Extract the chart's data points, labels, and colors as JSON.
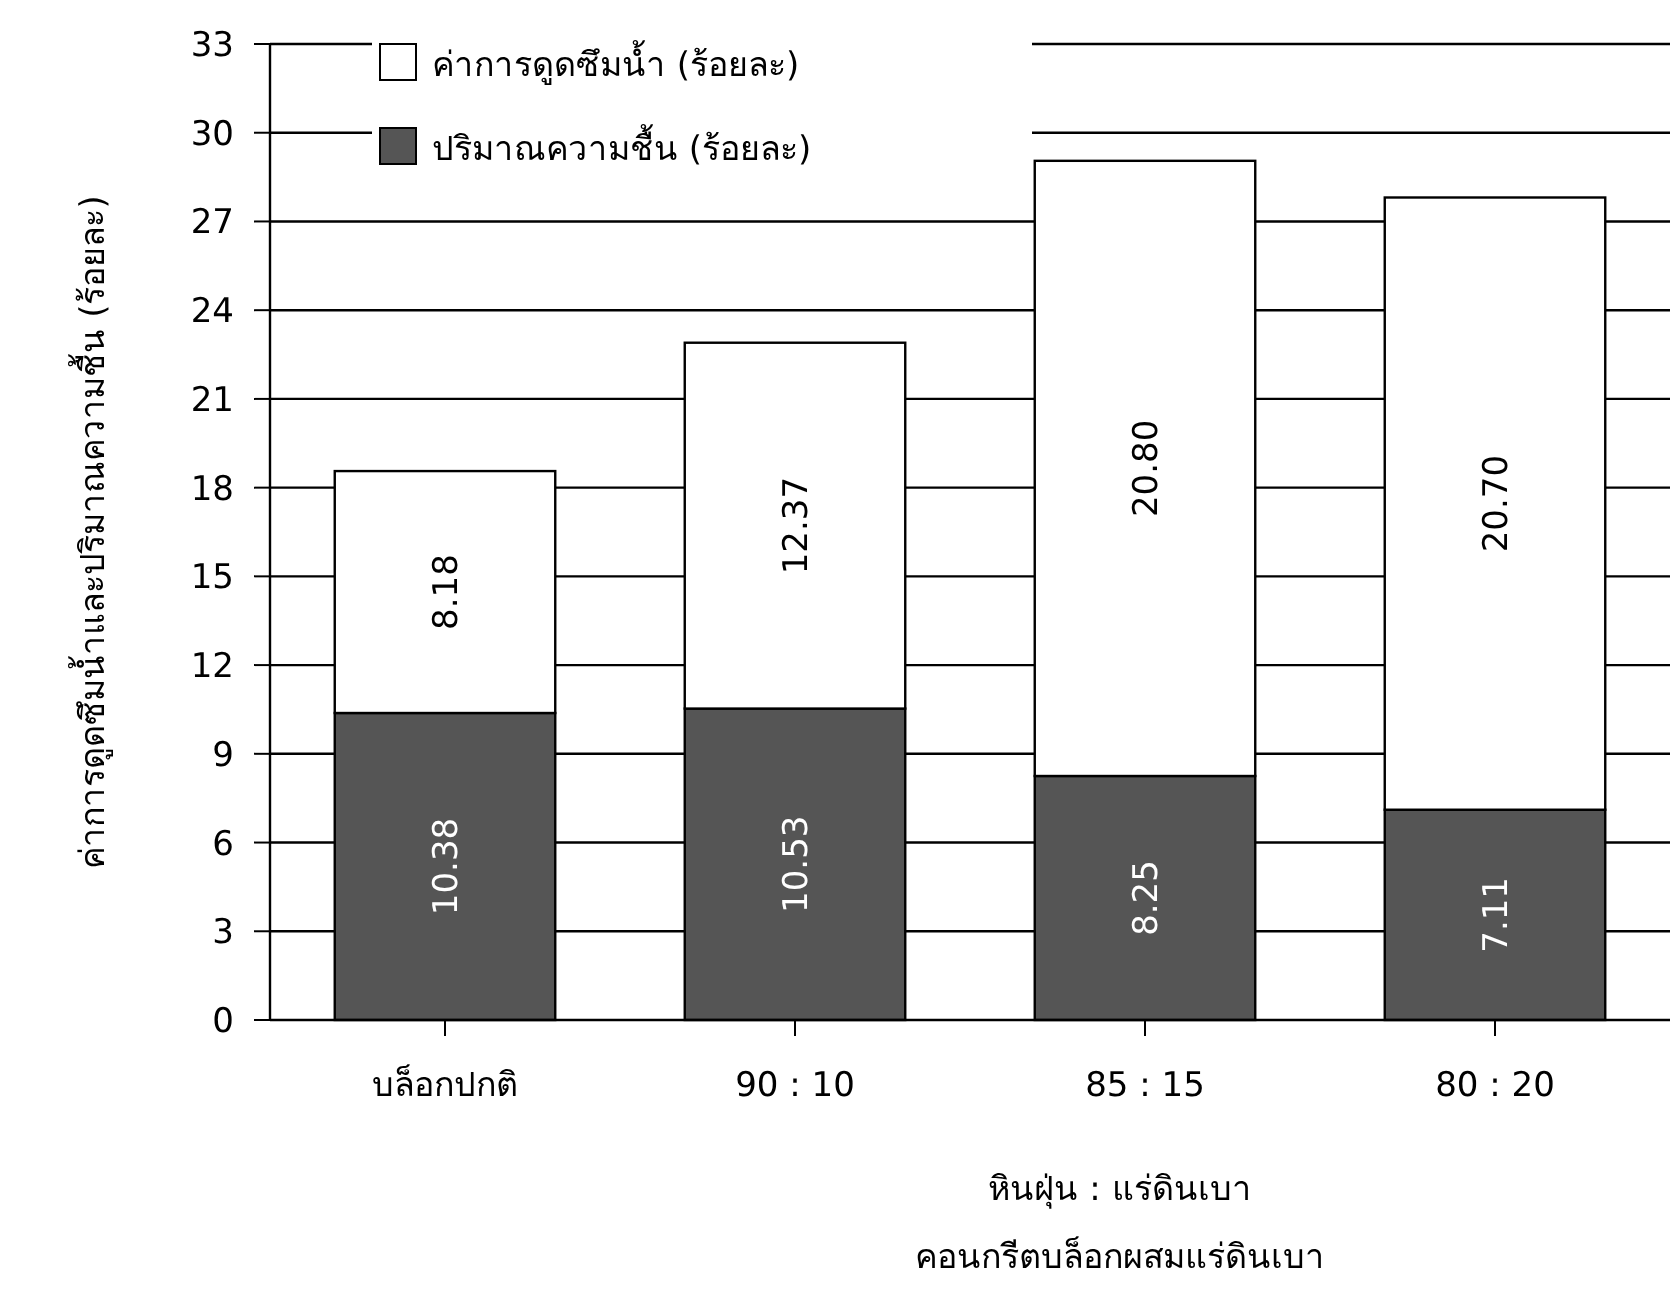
{
  "chart_data": {
    "type": "bar",
    "stacked": true,
    "categories": [
      "บล็อกปกติ",
      "90 : 10",
      "85 : 15",
      "80 : 20"
    ],
    "series": [
      {
        "name": "ปริมาณความชื้น (ร้อยละ)",
        "color": "#555555",
        "values": [
          10.38,
          10.53,
          8.25,
          7.11
        ],
        "value_labels": [
          "10.38",
          "10.53",
          "8.25",
          "7.11"
        ]
      },
      {
        "name": "ค่าการดูดซึมน้ำ (ร้อยละ)",
        "color": "#ffffff",
        "values": [
          8.18,
          12.37,
          20.8,
          20.7
        ],
        "value_labels": [
          "8.18",
          "12.37",
          "20.80",
          "20.70"
        ]
      }
    ],
    "ylabel": "ค่าการดูดซึมน้ำและปริมาณความชื้น (ร้อยละ)",
    "xlabel": "หินฝุ่น : แร่ดินเบา",
    "annotations": [
      "คอนกรีตบล็อกผสมแร่ดินเบา"
    ],
    "ylim": [
      0,
      33
    ],
    "yticks": [
      0,
      3,
      6,
      9,
      12,
      15,
      18,
      21,
      24,
      27,
      30,
      33
    ],
    "grid": "y",
    "legend": "top left"
  }
}
